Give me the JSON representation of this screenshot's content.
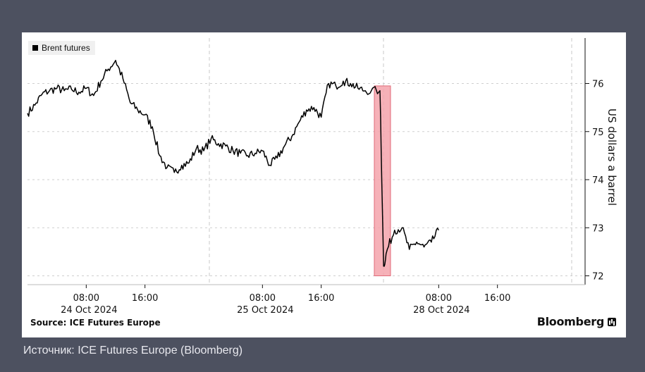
{
  "caption": "Источник: ICE Futures Europe (Bloomberg)",
  "source": "Source: ICE Futures Europe",
  "brand": "Bloomberg",
  "colors": {
    "background": "#4d5160",
    "card": "#ffffff",
    "line": "#000000",
    "highlight": "#f4a3ac"
  },
  "chart_data": {
    "type": "line",
    "title": "",
    "xlabel": "",
    "ylabel": "US dollars a barrel",
    "ylim": [
      71.6,
      76.9
    ],
    "yticks": [
      "72",
      "73",
      "74",
      "75",
      "76"
    ],
    "xticks": [
      {
        "time": "08:00",
        "date": "24 Oct 2024"
      },
      {
        "time": "16:00",
        "date": ""
      },
      {
        "time": "08:00",
        "date": "25 Oct 2024"
      },
      {
        "time": "16:00",
        "date": ""
      },
      {
        "time": "08:00",
        "date": "28 Oct 2024"
      },
      {
        "time": "16:00",
        "date": ""
      }
    ],
    "legend": "top-left",
    "grid": true,
    "series": [
      {
        "name": "Brent futures",
        "points": [
          [
            "24 Oct 00:00",
            75.38
          ],
          [
            "24 Oct 01:00",
            75.55
          ],
          [
            "24 Oct 02:00",
            75.78
          ],
          [
            "24 Oct 03:00",
            75.85
          ],
          [
            "24 Oct 04:00",
            75.9
          ],
          [
            "24 Oct 05:00",
            75.85
          ],
          [
            "24 Oct 06:00",
            75.88
          ],
          [
            "24 Oct 07:00",
            75.82
          ],
          [
            "24 Oct 08:00",
            75.9
          ],
          [
            "24 Oct 09:00",
            75.75
          ],
          [
            "24 Oct 10:00",
            76.05
          ],
          [
            "24 Oct 11:00",
            76.3
          ],
          [
            "24 Oct 12:00",
            76.48
          ],
          [
            "24 Oct 13:00",
            76.1
          ],
          [
            "24 Oct 14:00",
            75.6
          ],
          [
            "24 Oct 15:00",
            75.45
          ],
          [
            "24 Oct 16:00",
            75.35
          ],
          [
            "24 Oct 17:00",
            75.1
          ],
          [
            "24 Oct 18:00",
            74.5
          ],
          [
            "24 Oct 19:00",
            74.25
          ],
          [
            "24 Oct 20:00",
            74.15
          ],
          [
            "24 Oct 21:00",
            74.3
          ],
          [
            "24 Oct 22:00",
            74.35
          ],
          [
            "24 Oct 23:00",
            74.65
          ],
          [
            "25 Oct 00:00",
            74.6
          ],
          [
            "25 Oct 01:00",
            74.85
          ],
          [
            "25 Oct 02:00",
            74.75
          ],
          [
            "25 Oct 03:00",
            74.7
          ],
          [
            "25 Oct 04:00",
            74.6
          ],
          [
            "25 Oct 05:00",
            74.55
          ],
          [
            "25 Oct 06:00",
            74.5
          ],
          [
            "25 Oct 07:00",
            74.55
          ],
          [
            "25 Oct 08:00",
            74.6
          ],
          [
            "25 Oct 09:00",
            74.3
          ],
          [
            "25 Oct 10:00",
            74.45
          ],
          [
            "25 Oct 11:00",
            74.7
          ],
          [
            "25 Oct 12:00",
            74.9
          ],
          [
            "25 Oct 13:00",
            75.2
          ],
          [
            "25 Oct 14:00",
            75.45
          ],
          [
            "25 Oct 15:00",
            75.5
          ],
          [
            "25 Oct 16:00",
            75.3
          ],
          [
            "25 Oct 17:00",
            76.0
          ],
          [
            "25 Oct 18:00",
            75.95
          ],
          [
            "25 Oct 19:00",
            76.05
          ],
          [
            "25 Oct 20:00",
            76.0
          ],
          [
            "25 Oct 21:00",
            75.9
          ],
          [
            "25 Oct 22:00",
            75.85
          ],
          [
            "28 Oct 00:00",
            75.85
          ],
          [
            "28 Oct 00:30",
            72.2
          ],
          [
            "28 Oct 01:00",
            72.55
          ],
          [
            "28 Oct 02:00",
            72.95
          ],
          [
            "28 Oct 03:00",
            73.0
          ],
          [
            "28 Oct 04:00",
            72.55
          ],
          [
            "28 Oct 05:00",
            72.7
          ],
          [
            "28 Oct 06:00",
            72.6
          ],
          [
            "28 Oct 07:00",
            72.7
          ],
          [
            "28 Oct 08:00",
            72.95
          ]
        ]
      }
    ],
    "highlight": {
      "from": "27 Oct 23:00",
      "to": "28 Oct 01:00"
    }
  }
}
